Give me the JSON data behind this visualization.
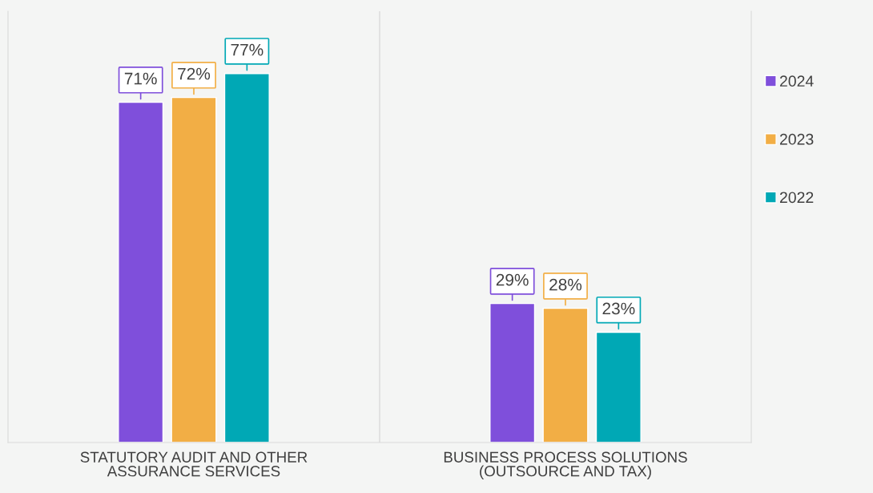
{
  "chart_data": {
    "type": "bar",
    "categories": [
      "STATUTORY AUDIT AND OTHER\nASSURANCE SERVICES",
      "BUSINESS PROCESS SOLUTIONS\n(OUTSOURCE AND TAX)"
    ],
    "series": [
      {
        "name": "2024",
        "color": "#7f4fdb",
        "values": [
          71,
          29
        ],
        "value_labels": [
          "71%",
          "29%"
        ]
      },
      {
        "name": "2023",
        "color": "#f2ae45",
        "values": [
          72,
          28
        ],
        "value_labels": [
          "72%",
          "28%"
        ]
      },
      {
        "name": "2022",
        "color": "#00a8b5",
        "values": [
          77,
          23
        ],
        "value_labels": [
          "77%",
          "23%"
        ]
      }
    ],
    "ylim": [
      0,
      90
    ],
    "tick_labels": "x",
    "grid": false,
    "legend": "right"
  }
}
